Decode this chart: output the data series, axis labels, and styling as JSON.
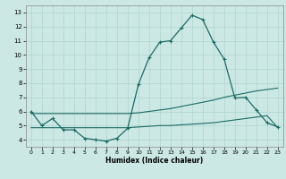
{
  "xlabel": "Humidex (Indice chaleur)",
  "ylabel": "",
  "background_color": "#cce8e4",
  "grid_color": "#afd4cf",
  "line_color": "#1a6b65",
  "xlim": [
    -0.5,
    23.5
  ],
  "ylim": [
    3.5,
    13.5
  ],
  "xticks": [
    0,
    1,
    2,
    3,
    4,
    5,
    6,
    7,
    8,
    9,
    10,
    11,
    12,
    13,
    14,
    15,
    16,
    17,
    18,
    19,
    20,
    21,
    22,
    23
  ],
  "yticks": [
    4,
    5,
    6,
    7,
    8,
    9,
    10,
    11,
    12,
    13
  ],
  "hours": [
    0,
    1,
    2,
    3,
    4,
    5,
    6,
    7,
    8,
    9,
    10,
    11,
    12,
    13,
    14,
    15,
    16,
    17,
    18,
    19,
    20,
    21,
    22,
    23
  ],
  "humidex": [
    6.0,
    5.0,
    5.5,
    4.7,
    4.7,
    4.1,
    4.0,
    3.9,
    4.1,
    4.8,
    7.9,
    9.8,
    10.9,
    11.0,
    11.9,
    12.8,
    12.5,
    10.9,
    9.7,
    6.95,
    7.0,
    6.1,
    5.2,
    4.9
  ],
  "line2": [
    5.85,
    5.85,
    5.85,
    5.85,
    5.85,
    5.85,
    5.85,
    5.85,
    5.85,
    5.85,
    5.9,
    6.0,
    6.1,
    6.2,
    6.35,
    6.5,
    6.65,
    6.8,
    7.0,
    7.15,
    7.3,
    7.45,
    7.55,
    7.65
  ],
  "line3": [
    4.85,
    4.85,
    4.85,
    4.85,
    4.85,
    4.85,
    4.85,
    4.85,
    4.85,
    4.85,
    4.9,
    4.95,
    5.0,
    5.0,
    5.05,
    5.1,
    5.15,
    5.2,
    5.3,
    5.4,
    5.5,
    5.6,
    5.7,
    4.85
  ]
}
